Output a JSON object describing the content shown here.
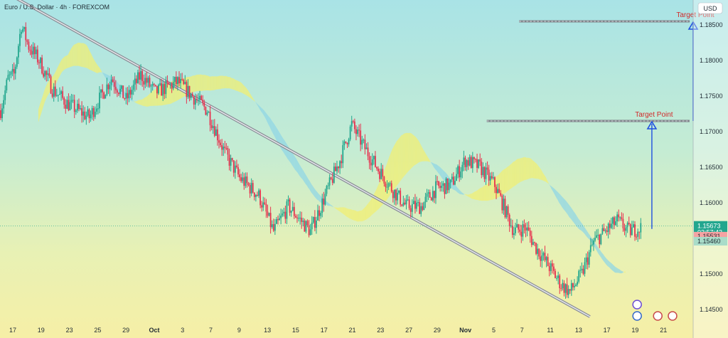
{
  "legend": "Euro / U.S. Dollar · 4h · FOREXCOM",
  "currency_label": "USD",
  "colors": {
    "up": "#22a68e",
    "down": "#e6334f",
    "trend_line": "#8b8f98",
    "arrow": "#1f4fe0",
    "target_label": "#d12a2a",
    "cloud": "#f2ef72",
    "cloud_bearish": "#8fd6e6"
  },
  "chart_data": {
    "type": "candlestick",
    "title": "Euro / U.S. Dollar · 4h · FOREXCOM",
    "xlabel": "",
    "ylabel": "",
    "y_ticks": [
      "1.14500",
      "1.15000",
      "1.15500",
      "1.16000",
      "1.16500",
      "1.17000",
      "1.17500",
      "1.18000",
      "1.18500"
    ],
    "ylim": [
      1.1435,
      1.1885
    ],
    "x_ticks": [
      "17",
      "19",
      "23",
      "25",
      "29",
      "Oct",
      "3",
      "7",
      "9",
      "13",
      "15",
      "17",
      "21",
      "23",
      "27",
      "29",
      "Nov",
      "5",
      "7",
      "11",
      "13",
      "17",
      "19",
      "21"
    ],
    "price_anchors": [
      {
        "t": 0,
        "p": 1.173
      },
      {
        "t": 5,
        "p": 1.1775
      },
      {
        "t": 9,
        "p": 1.178
      },
      {
        "t": 14,
        "p": 1.185
      },
      {
        "t": 19,
        "p": 1.182
      },
      {
        "t": 26,
        "p": 1.18
      },
      {
        "t": 35,
        "p": 1.176
      },
      {
        "t": 45,
        "p": 1.174
      },
      {
        "t": 60,
        "p": 1.172
      },
      {
        "t": 75,
        "p": 1.1775
      },
      {
        "t": 85,
        "p": 1.1745
      },
      {
        "t": 95,
        "p": 1.178
      },
      {
        "t": 105,
        "p": 1.1755
      },
      {
        "t": 120,
        "p": 1.177
      },
      {
        "t": 140,
        "p": 1.173
      },
      {
        "t": 152,
        "p": 1.167
      },
      {
        "t": 162,
        "p": 1.1635
      },
      {
        "t": 175,
        "p": 1.161
      },
      {
        "t": 185,
        "p": 1.156
      },
      {
        "t": 195,
        "p": 1.1595
      },
      {
        "t": 210,
        "p": 1.156
      },
      {
        "t": 222,
        "p": 1.162
      },
      {
        "t": 230,
        "p": 1.166
      },
      {
        "t": 238,
        "p": 1.171
      },
      {
        "t": 246,
        "p": 1.168
      },
      {
        "t": 255,
        "p": 1.165
      },
      {
        "t": 265,
        "p": 1.162
      },
      {
        "t": 275,
        "p": 1.1595
      },
      {
        "t": 285,
        "p": 1.1595
      },
      {
        "t": 295,
        "p": 1.162
      },
      {
        "t": 305,
        "p": 1.1625
      },
      {
        "t": 315,
        "p": 1.166
      },
      {
        "t": 325,
        "p": 1.165
      },
      {
        "t": 335,
        "p": 1.1625
      },
      {
        "t": 342,
        "p": 1.159
      },
      {
        "t": 348,
        "p": 1.156
      },
      {
        "t": 356,
        "p": 1.1565
      },
      {
        "t": 362,
        "p": 1.154
      },
      {
        "t": 372,
        "p": 1.151
      },
      {
        "t": 380,
        "p": 1.1485
      },
      {
        "t": 386,
        "p": 1.1475
      },
      {
        "t": 394,
        "p": 1.15
      },
      {
        "t": 402,
        "p": 1.1545
      },
      {
        "t": 410,
        "p": 1.156
      },
      {
        "t": 418,
        "p": 1.1575
      },
      {
        "t": 426,
        "p": 1.156
      },
      {
        "t": 434,
        "p": 1.1565
      }
    ],
    "trend_line": {
      "start": {
        "t": 0,
        "p": 1.19
      },
      "end": {
        "t": 400,
        "p": 1.144
      }
    },
    "targets": [
      {
        "label": "Target Point",
        "price": 1.1715
      },
      {
        "label": "Target Point",
        "price": 1.1855
      }
    ],
    "price_labels": [
      {
        "value": "1.15673",
        "sub": "03:57:43",
        "color": "#22a68e"
      },
      {
        "value": "1.15531",
        "color": "#f5a3a3"
      },
      {
        "value": "1.15460",
        "color": "#a9dcc9"
      }
    ]
  }
}
